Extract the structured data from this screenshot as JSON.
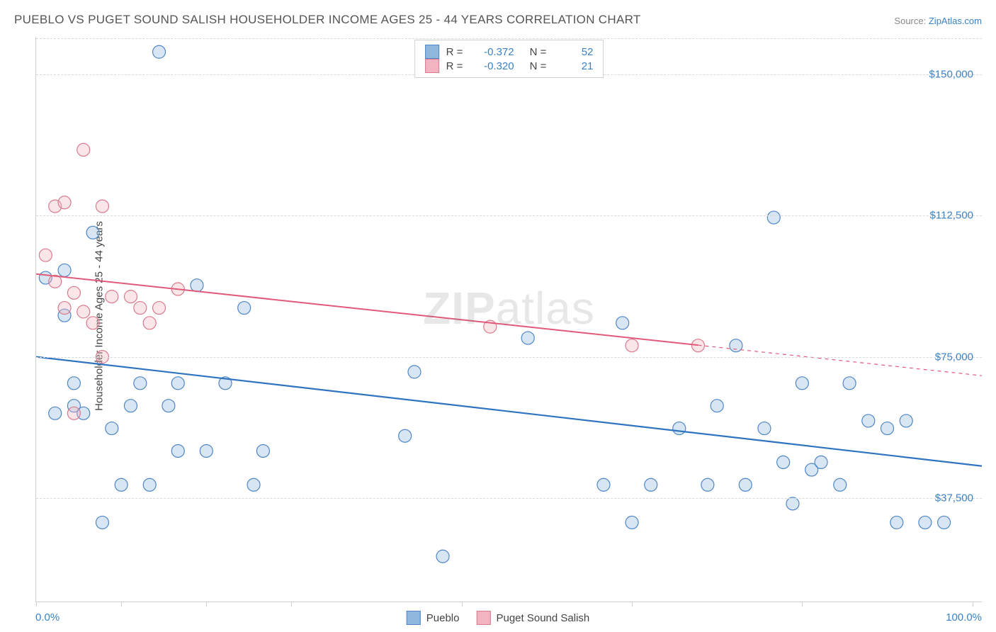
{
  "title": "PUEBLO VS PUGET SOUND SALISH HOUSEHOLDER INCOME AGES 25 - 44 YEARS CORRELATION CHART",
  "source_label": "Source:",
  "source_name": "ZipAtlas.com",
  "y_axis_label": "Householder Income Ages 25 - 44 years",
  "watermark_a": "ZIP",
  "watermark_b": "atlas",
  "chart": {
    "type": "scatter",
    "xlim": [
      0,
      100
    ],
    "ylim": [
      10000,
      160000
    ],
    "x_tick_label_left": "0.0%",
    "x_tick_label_right": "100.0%",
    "x_tick_positions_pct": [
      0,
      9,
      18,
      27,
      45,
      63,
      81,
      99
    ],
    "y_ticks": [
      {
        "value": 37500,
        "label": "$37,500"
      },
      {
        "value": 75000,
        "label": "$75,000"
      },
      {
        "value": 112500,
        "label": "$112,500"
      },
      {
        "value": 150000,
        "label": "$150,000"
      }
    ],
    "grid_color": "#d8d8d8",
    "marker_radius": 9,
    "marker_stroke_width": 1.2,
    "marker_fill_opacity": 0.35,
    "series": [
      {
        "name": "Pueblo",
        "color_fill": "#8fb7de",
        "color_stroke": "#4f86c6",
        "line_color": "#2e74c0",
        "line_width": 2.2,
        "R": "-0.372",
        "N": "52",
        "trend": {
          "x1": 0,
          "y1": 75000,
          "x2": 100,
          "y2": 46000
        },
        "trend_dash_start_pct": 100,
        "points": [
          [
            1,
            96000
          ],
          [
            2,
            60000
          ],
          [
            3,
            98000
          ],
          [
            3,
            86000
          ],
          [
            4,
            68000
          ],
          [
            4,
            62000
          ],
          [
            5,
            60000
          ],
          [
            6,
            108000
          ],
          [
            7,
            31000
          ],
          [
            8,
            56000
          ],
          [
            9,
            41000
          ],
          [
            10,
            62000
          ],
          [
            11,
            68000
          ],
          [
            12,
            41000
          ],
          [
            13,
            156000
          ],
          [
            14,
            62000
          ],
          [
            15,
            68000
          ],
          [
            15,
            50000
          ],
          [
            17,
            94000
          ],
          [
            18,
            50000
          ],
          [
            20,
            68000
          ],
          [
            23,
            41000
          ],
          [
            22,
            88000
          ],
          [
            24,
            50000
          ],
          [
            39,
            54000
          ],
          [
            40,
            71000
          ],
          [
            43,
            22000
          ],
          [
            52,
            80000
          ],
          [
            60,
            41000
          ],
          [
            62,
            84000
          ],
          [
            63,
            31000
          ],
          [
            65,
            41000
          ],
          [
            68,
            56000
          ],
          [
            71,
            41000
          ],
          [
            72,
            62000
          ],
          [
            74,
            78000
          ],
          [
            75,
            41000
          ],
          [
            77,
            56000
          ],
          [
            78,
            112000
          ],
          [
            79,
            47000
          ],
          [
            80,
            36000
          ],
          [
            81,
            68000
          ],
          [
            82,
            45000
          ],
          [
            83,
            47000
          ],
          [
            85,
            41000
          ],
          [
            86,
            68000
          ],
          [
            88,
            58000
          ],
          [
            90,
            56000
          ],
          [
            91,
            31000
          ],
          [
            92,
            58000
          ],
          [
            94,
            31000
          ],
          [
            96,
            31000
          ]
        ]
      },
      {
        "name": "Puget Sound Salish",
        "color_fill": "#f2b4c0",
        "color_stroke": "#d97a8e",
        "line_color": "#e05a7a",
        "line_width": 2,
        "R": "-0.320",
        "N": "21",
        "trend": {
          "x1": 0,
          "y1": 97000,
          "x2": 100,
          "y2": 70000
        },
        "trend_dash_start_pct": 70,
        "points": [
          [
            1,
            102000
          ],
          [
            2,
            95000
          ],
          [
            2,
            115000
          ],
          [
            3,
            88000
          ],
          [
            3,
            116000
          ],
          [
            4,
            92000
          ],
          [
            4,
            60000
          ],
          [
            5,
            130000
          ],
          [
            5,
            87000
          ],
          [
            6,
            84000
          ],
          [
            7,
            115000
          ],
          [
            7,
            75000
          ],
          [
            8,
            91000
          ],
          [
            10,
            91000
          ],
          [
            11,
            88000
          ],
          [
            12,
            84000
          ],
          [
            13,
            88000
          ],
          [
            15,
            93000
          ],
          [
            48,
            83000
          ],
          [
            63,
            78000
          ],
          [
            70,
            78000
          ]
        ]
      }
    ]
  },
  "legend": {
    "series1_label": "Pueblo",
    "series2_label": "Puget Sound Salish",
    "r_label": "R  =",
    "n_label": "N  ="
  }
}
